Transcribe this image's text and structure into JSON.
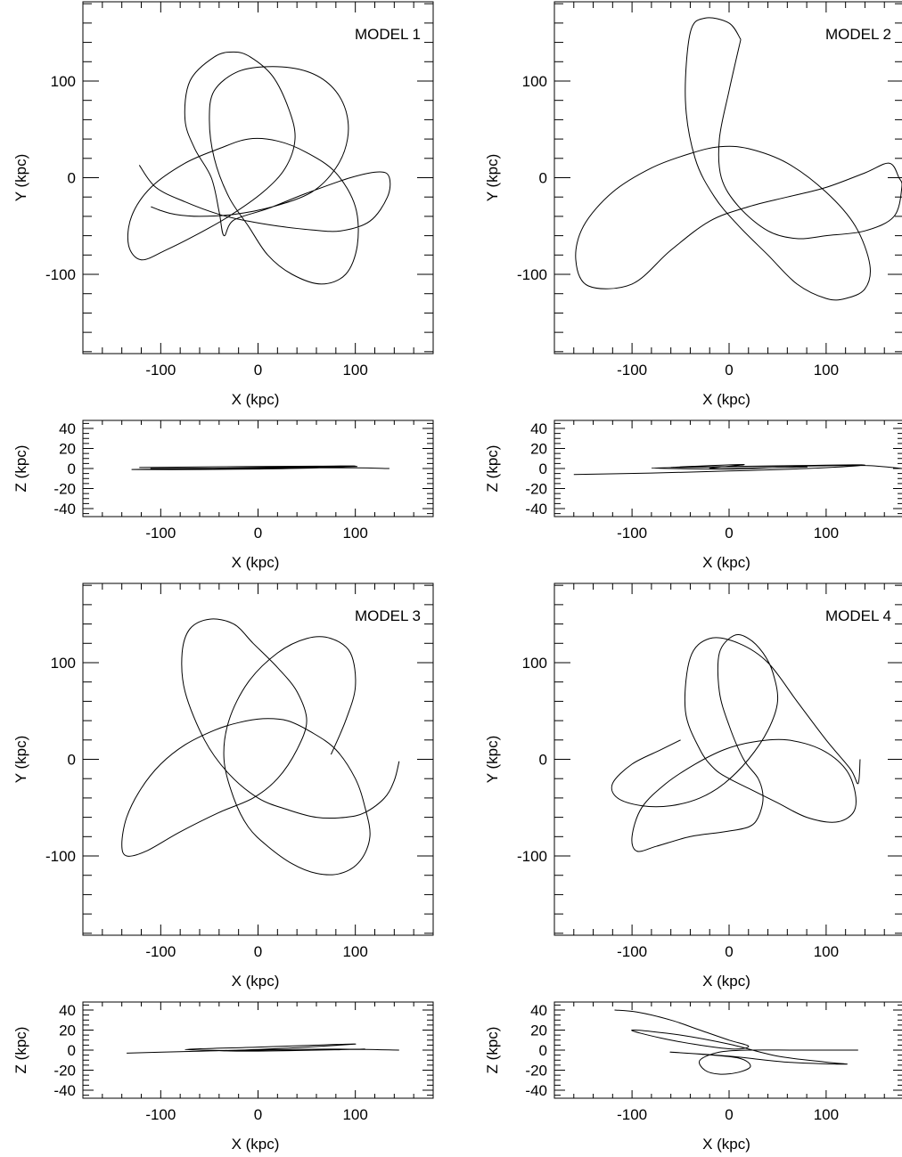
{
  "chart_data": [
    {
      "type": "line",
      "panel": "xy",
      "model_label": "MODEL 1",
      "xlabel": "X (kpc)",
      "ylabel": "Y (kpc)",
      "xlim": [
        -180,
        180
      ],
      "ylim": [
        -182,
        182
      ],
      "xticks": [
        "-100",
        "0",
        "100"
      ],
      "yticks": [
        "-100",
        "0",
        "100"
      ],
      "x": [
        -122,
        -105,
        -75,
        -40,
        -10,
        20,
        55,
        85,
        115,
        133,
        135,
        125,
        95,
        50,
        10,
        -25,
        -35,
        -40,
        -48,
        -65,
        -75,
        -70,
        -45,
        -25,
        -8,
        15,
        32,
        38,
        28,
        5,
        -30,
        -65,
        -95,
        -120,
        -133,
        -130,
        -110,
        -75,
        -40,
        -10,
        20,
        50,
        80,
        100,
        102,
        90,
        65,
        35,
        10,
        -10,
        -30,
        -45,
        -50,
        -45,
        -20,
        15,
        50,
        75,
        90,
        92,
        80,
        55,
        15,
        -25,
        -60,
        -85,
        -100,
        -110
      ],
      "y": [
        13,
        -10,
        -25,
        -38,
        -45,
        -50,
        -54,
        -55,
        -45,
        -20,
        0,
        6,
        0,
        -16,
        -32,
        -44,
        -60,
        -35,
        0,
        30,
        60,
        100,
        125,
        130,
        125,
        105,
        70,
        40,
        10,
        -15,
        -40,
        -60,
        -75,
        -85,
        -70,
        -40,
        -10,
        15,
        30,
        40,
        38,
        26,
        5,
        -30,
        -70,
        -100,
        -110,
        -100,
        -80,
        -50,
        -20,
        20,
        60,
        90,
        110,
        115,
        110,
        95,
        70,
        40,
        10,
        -15,
        -30,
        -38,
        -40,
        -38,
        -34,
        -30
      ]
    },
    {
      "type": "line",
      "panel": "xy",
      "model_label": "MODEL 2",
      "xlabel": "X (kpc)",
      "ylabel": "Y (kpc)",
      "xlim": [
        -180,
        180
      ],
      "ylim": [
        -182,
        182
      ],
      "xticks": [
        "-100",
        "0",
        "100"
      ],
      "yticks": [
        "-100",
        "0",
        "100"
      ],
      "x": [
        12,
        0,
        -10,
        -8,
        10,
        40,
        70,
        100,
        140,
        170,
        178,
        175,
        165,
        140,
        100,
        60,
        20,
        -20,
        -60,
        -100,
        -145,
        -158,
        -150,
        -120,
        -80,
        -40,
        -10,
        20,
        60,
        100,
        130,
        145,
        140,
        120,
        100,
        70,
        40,
        10,
        -15,
        -35,
        -45,
        -40,
        -25,
        0,
        12
      ],
      "y": [
        143,
        90,
        40,
        0,
        -30,
        -55,
        -63,
        -60,
        -55,
        -40,
        -10,
        0,
        15,
        5,
        -10,
        -20,
        -30,
        -45,
        -75,
        -110,
        -112,
        -85,
        -50,
        -15,
        10,
        25,
        32,
        30,
        15,
        -15,
        -50,
        -90,
        -115,
        -125,
        -125,
        -110,
        -80,
        -50,
        -20,
        20,
        80,
        150,
        165,
        160,
        143
      ]
    },
    {
      "type": "line",
      "panel": "xy",
      "model_label": "MODEL 3",
      "xlabel": "X (kpc)",
      "ylabel": "Y (kpc)",
      "xlim": [
        -180,
        180
      ],
      "ylim": [
        -182,
        182
      ],
      "xticks": [
        "-100",
        "0",
        "100"
      ],
      "yticks": [
        "-100",
        "0",
        "100"
      ],
      "x": [
        145,
        140,
        130,
        110,
        90,
        60,
        30,
        0,
        -30,
        -55,
        -75,
        -78,
        -70,
        -50,
        -25,
        -5,
        20,
        40,
        50,
        40,
        20,
        -5,
        -40,
        -80,
        -115,
        -135,
        -140,
        -135,
        -120,
        -100,
        -75,
        -45,
        -20,
        5,
        30,
        55,
        80,
        100,
        110,
        115,
        105,
        85,
        60,
        35,
        10,
        -10,
        -25,
        -35,
        -30,
        -10,
        20,
        50,
        75,
        95,
        100,
        90,
        75
      ],
      "y": [
        -2,
        -22,
        -40,
        -55,
        -60,
        -60,
        -52,
        -40,
        -15,
        20,
        70,
        110,
        135,
        145,
        140,
        120,
        95,
        70,
        40,
        10,
        -20,
        -40,
        -55,
        -75,
        -95,
        -100,
        -88,
        -60,
        -30,
        -5,
        15,
        30,
        38,
        42,
        40,
        28,
        10,
        -20,
        -50,
        -80,
        -105,
        -118,
        -118,
        -108,
        -90,
        -70,
        -40,
        0,
        40,
        80,
        110,
        125,
        125,
        110,
        75,
        40,
        5
      ]
    },
    {
      "type": "line",
      "panel": "xy",
      "model_label": "MODEL 4",
      "xlabel": "X (kpc)",
      "ylabel": "Y (kpc)",
      "xlim": [
        -180,
        180
      ],
      "ylim": [
        -182,
        182
      ],
      "xticks": [
        "-100",
        "0",
        "100"
      ],
      "yticks": [
        "-100",
        "0",
        "100"
      ],
      "x": [
        -50,
        -70,
        -100,
        -120,
        -115,
        -90,
        -60,
        -30,
        -5,
        20,
        40,
        50,
        45,
        35,
        20,
        5,
        -10,
        -10,
        0,
        15,
        30,
        35,
        30,
        20,
        -5,
        -40,
        -75,
        -95,
        -100,
        -90,
        -65,
        -35,
        -5,
        25,
        60,
        95,
        120,
        130,
        128,
        110,
        80,
        50,
        20,
        0,
        -15,
        -30,
        -45,
        -40,
        -20,
        10,
        40,
        70,
        100,
        125,
        133,
        135
      ],
      "y": [
        20,
        10,
        -5,
        -25,
        -40,
        -48,
        -48,
        -40,
        -25,
        0,
        30,
        60,
        90,
        110,
        125,
        128,
        110,
        70,
        35,
        0,
        -20,
        -40,
        -60,
        -70,
        -75,
        -80,
        -90,
        -95,
        -80,
        -50,
        -25,
        -5,
        10,
        18,
        20,
        10,
        -10,
        -35,
        -55,
        -65,
        -60,
        -45,
        -30,
        -20,
        -10,
        10,
        50,
        105,
        125,
        120,
        100,
        60,
        20,
        -10,
        -25,
        0
      ]
    },
    {
      "type": "line",
      "panel": "xz",
      "xlabel": "X (kpc)",
      "ylabel": "Z (kpc)",
      "xlim": [
        -180,
        180
      ],
      "ylim": [
        -48,
        48
      ],
      "xticks": [
        "-100",
        "0",
        "100"
      ],
      "yticks": [
        "40",
        "20",
        "0",
        "-20",
        "-40"
      ],
      "x": [
        -122,
        -60,
        0,
        60,
        100,
        60,
        0,
        -60,
        -130,
        -60,
        0,
        60,
        102,
        60,
        0,
        -60,
        -110,
        -40,
        40,
        100,
        135
      ],
      "y": [
        1,
        1.5,
        2,
        2.3,
        2.5,
        0.5,
        -0.5,
        -1,
        -1,
        0,
        1,
        1.5,
        2,
        1,
        0,
        -0.5,
        0,
        0.3,
        0.6,
        0.6,
        0
      ]
    },
    {
      "type": "line",
      "panel": "xz",
      "xlabel": "X (kpc)",
      "ylabel": "Z (kpc)",
      "xlim": [
        -180,
        180
      ],
      "ylim": [
        -48,
        48
      ],
      "xticks": [
        "-100",
        "0",
        "100"
      ],
      "yticks": [
        "40",
        "20",
        "0",
        "-20",
        "-40"
      ],
      "x": [
        -160,
        -80,
        0,
        80,
        140,
        80,
        0,
        -80,
        0,
        50,
        80,
        30,
        -20,
        15,
        -60,
        20,
        80,
        140,
        178
      ],
      "y": [
        -6,
        -4.5,
        -2.5,
        0,
        3.5,
        3,
        2,
        0.5,
        -0.5,
        1,
        1.5,
        0.5,
        0,
        4,
        1,
        2,
        2.5,
        3,
        0
      ]
    },
    {
      "type": "line",
      "panel": "xz",
      "xlabel": "X (kpc)",
      "ylabel": "Z (kpc)",
      "xlim": [
        -180,
        180
      ],
      "ylim": [
        -48,
        48
      ],
      "xticks": [
        "-100",
        "0",
        "100"
      ],
      "yticks": [
        "40",
        "20",
        "0",
        "-20",
        "-40"
      ],
      "x": [
        -135,
        -80,
        -20,
        40,
        100,
        60,
        0,
        -75,
        0,
        60,
        110,
        60,
        0,
        -40,
        20,
        80,
        145
      ],
      "y": [
        -3,
        -1.5,
        0,
        2.5,
        6,
        5,
        3,
        0.5,
        -0.5,
        0,
        1,
        0,
        -1,
        -0.5,
        0.5,
        1,
        0
      ]
    },
    {
      "type": "line",
      "panel": "xz",
      "xlabel": "X (kpc)",
      "ylabel": "Z (kpc)",
      "xlim": [
        -180,
        180
      ],
      "ylim": [
        -48,
        48
      ],
      "xticks": [
        "-100",
        "0",
        "100"
      ],
      "yticks": [
        "40",
        "20",
        "0",
        "-20",
        "-40"
      ],
      "x": [
        -118,
        -95,
        -60,
        -30,
        0,
        20,
        5,
        -30,
        -70,
        -100,
        -50,
        0,
        50,
        100,
        120,
        60,
        0,
        -60,
        -30,
        10,
        22,
        10,
        -10,
        -25,
        -30,
        -10,
        20,
        70,
        133
      ],
      "y": [
        40,
        38,
        30,
        20,
        10,
        4,
        1,
        5,
        12,
        20,
        15,
        6,
        -6,
        -12,
        -14,
        -12,
        -6,
        -2,
        -4,
        -8,
        -16,
        -22,
        -24,
        -20,
        -10,
        -2,
        0,
        0,
        0
      ]
    }
  ]
}
